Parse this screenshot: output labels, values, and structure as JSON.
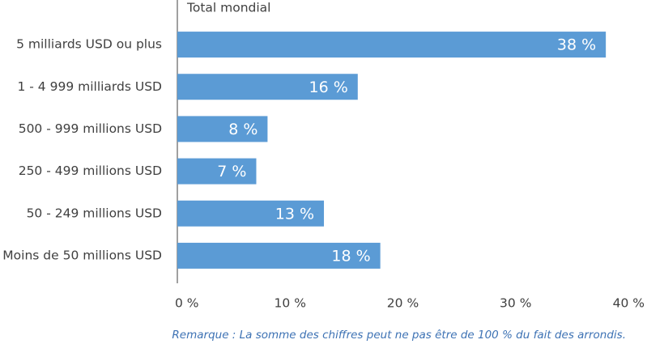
{
  "chart_data": {
    "type": "bar",
    "orientation": "horizontal",
    "title": "Total mondial",
    "categories": [
      "5 milliards USD ou plus",
      "1 - 4 999 milliards USD",
      "500 - 999 millions USD",
      "250 - 499 millions USD",
      "50 - 249 millions USD",
      "Moins de 50 millions USD"
    ],
    "values": [
      38,
      16,
      8,
      7,
      13,
      18
    ],
    "value_labels": [
      "38 %",
      "16 %",
      "8 %",
      "7 %",
      "13 %",
      "18 %"
    ],
    "color": "#5b9bd5",
    "xlim": [
      0,
      40
    ],
    "xticks": [
      {
        "value": 0,
        "label": "0 %"
      },
      {
        "value": 10,
        "label": "10 %"
      },
      {
        "value": 20,
        "label": "20 %"
      },
      {
        "value": 30,
        "label": "30 %"
      },
      {
        "value": 40,
        "label": "40 %"
      }
    ],
    "grid": false,
    "note": "Remarque : La somme des chiffres peut ne pas être de 100 % du fait des arrondis."
  }
}
